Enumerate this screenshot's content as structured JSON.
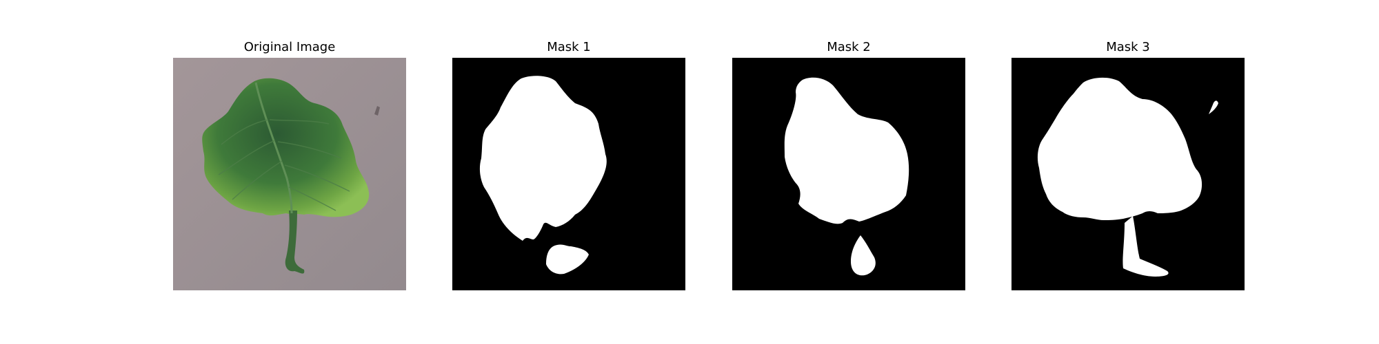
{
  "figure": {
    "panels": [
      {
        "title": "Original Image"
      },
      {
        "title": "Mask 1"
      },
      {
        "title": "Mask 2"
      },
      {
        "title": "Mask 3"
      }
    ]
  },
  "colors": {
    "background": "#ffffff",
    "mask_background": "#000000",
    "mask_foreground": "#ffffff",
    "ground": "#9b9095",
    "leaf_dark": "#2f5e34",
    "leaf_light": "#7fb24a",
    "stem": "#3d6b3a"
  },
  "icons": [
    "leaf-photo",
    "segmentation-mask"
  ]
}
